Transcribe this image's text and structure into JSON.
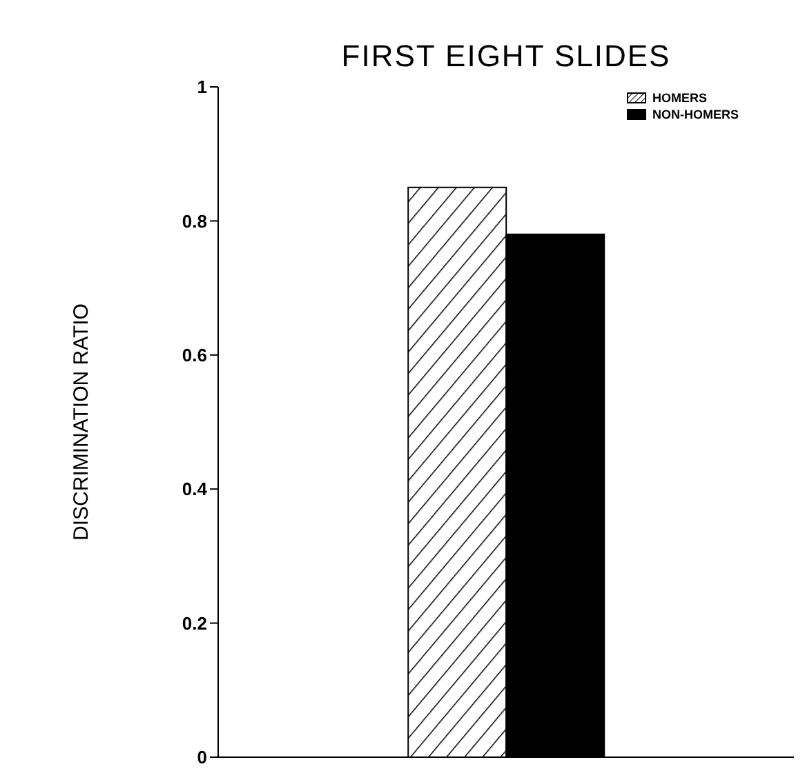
{
  "chart_data": {
    "type": "bar",
    "title": "FIRST EIGHT SLIDES",
    "ylabel": "DISCRIMINATION RATIO",
    "categories": [
      null
    ],
    "series": [
      {
        "name": "HOMERS",
        "color": "#000000",
        "values": [
          0.85
        ]
      },
      {
        "name": "NON-HOMERS",
        "color": "#000000",
        "values": [
          0.78
        ]
      }
    ],
    "ylim": [
      0,
      1
    ],
    "yticks": [
      0,
      0.2,
      0.4,
      0.6,
      0.8,
      1
    ],
    "grid": false,
    "legend": "top right"
  }
}
